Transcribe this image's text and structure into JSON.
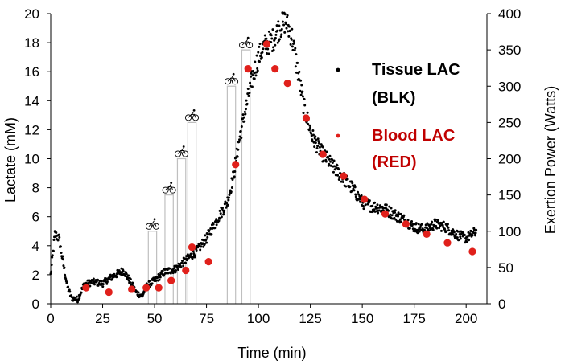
{
  "chart_data": {
    "type": "scatter",
    "title": "",
    "xlabel": "Time (min)",
    "ylabel_left": "Lactate (mM)",
    "ylabel_right": "Exertion Power (Watts)",
    "xlim": [
      0,
      210
    ],
    "ylim_left": [
      0,
      20
    ],
    "ylim_right": [
      0,
      400
    ],
    "x_ticks": [
      0,
      25,
      50,
      75,
      100,
      125,
      150,
      175,
      200
    ],
    "y_left_ticks": [
      0,
      2,
      4,
      6,
      8,
      10,
      12,
      14,
      16,
      18,
      20
    ],
    "y_right_ticks": [
      0,
      50,
      100,
      150,
      200,
      250,
      300,
      350,
      400
    ],
    "grid": false,
    "legend_position": "right",
    "legend": [
      {
        "line1": "Tissue LAC",
        "line2": "(BLK)",
        "color": "#000000",
        "series": "tissue"
      },
      {
        "line1": "Blood LAC",
        "line2": "(RED)",
        "color": "#c00000",
        "series": "blood"
      }
    ],
    "tissue_trend": [
      [
        0,
        2.0
      ],
      [
        2,
        4.8
      ],
      [
        4,
        4.5
      ],
      [
        6,
        2.8
      ],
      [
        8,
        1.2
      ],
      [
        10,
        0.4
      ],
      [
        13,
        0.3
      ],
      [
        16,
        1.3
      ],
      [
        20,
        1.5
      ],
      [
        25,
        1.4
      ],
      [
        30,
        1.9
      ],
      [
        35,
        2.3
      ],
      [
        38,
        1.6
      ],
      [
        41,
        0.8
      ],
      [
        44,
        0.5
      ],
      [
        46,
        1.2
      ],
      [
        50,
        1.6
      ],
      [
        55,
        2.2
      ],
      [
        60,
        2.4
      ],
      [
        65,
        3.0
      ],
      [
        70,
        3.6
      ],
      [
        75,
        4.5
      ],
      [
        80,
        5.8
      ],
      [
        85,
        7.0
      ],
      [
        88,
        8.8
      ],
      [
        91,
        11.5
      ],
      [
        94,
        13.5
      ],
      [
        97,
        15.5
      ],
      [
        100,
        17.0
      ],
      [
        103,
        17.8
      ],
      [
        107,
        18.2
      ],
      [
        110,
        19.0
      ],
      [
        113,
        19.5
      ],
      [
        116,
        18.5
      ],
      [
        119,
        16.0
      ],
      [
        122,
        13.5
      ],
      [
        126,
        11.5
      ],
      [
        130,
        10.5
      ],
      [
        135,
        9.6
      ],
      [
        140,
        8.8
      ],
      [
        145,
        8.0
      ],
      [
        150,
        7.0
      ],
      [
        155,
        6.7
      ],
      [
        160,
        6.6
      ],
      [
        165,
        6.2
      ],
      [
        170,
        5.8
      ],
      [
        175,
        5.3
      ],
      [
        180,
        5.1
      ],
      [
        185,
        5.5
      ],
      [
        190,
        5.3
      ],
      [
        195,
        4.8
      ],
      [
        200,
        4.5
      ],
      [
        205,
        5.0
      ]
    ],
    "blood": {
      "name": "Blood LAC",
      "x": [
        17,
        28,
        39,
        46,
        52,
        58,
        65,
        68,
        76,
        89,
        95,
        104,
        108,
        114,
        123,
        131,
        141,
        151,
        161,
        171,
        181,
        191,
        203
      ],
      "y": [
        1.1,
        0.8,
        1.0,
        1.1,
        1.1,
        1.6,
        2.3,
        3.9,
        2.9,
        9.6,
        16.2,
        17.9,
        16.2,
        15.2,
        12.8,
        10.3,
        8.8,
        7.2,
        6.2,
        5.5,
        4.8,
        4.2,
        3.6
      ]
    },
    "power_steps": {
      "name": "Exertion Power",
      "axis": "right",
      "values_watts": [
        100,
        150,
        200,
        250,
        300,
        350
      ],
      "bars": [
        {
          "x_start": 47,
          "x_end": 51,
          "watts": 100
        },
        {
          "x_start": 55,
          "x_end": 59,
          "watts": 150
        },
        {
          "x_start": 61,
          "x_end": 65,
          "watts": 200
        },
        {
          "x_start": 66,
          "x_end": 70,
          "watts": 250
        },
        {
          "x_start": 85,
          "x_end": 89,
          "watts": 300
        },
        {
          "x_start": 92,
          "x_end": 96,
          "watts": 350
        }
      ],
      "icon": "cyclist-icon"
    },
    "colors": {
      "tissue": "#000000",
      "blood": "#e0201b",
      "power": "#bfbfbf",
      "legend_red": "#c00000"
    }
  }
}
